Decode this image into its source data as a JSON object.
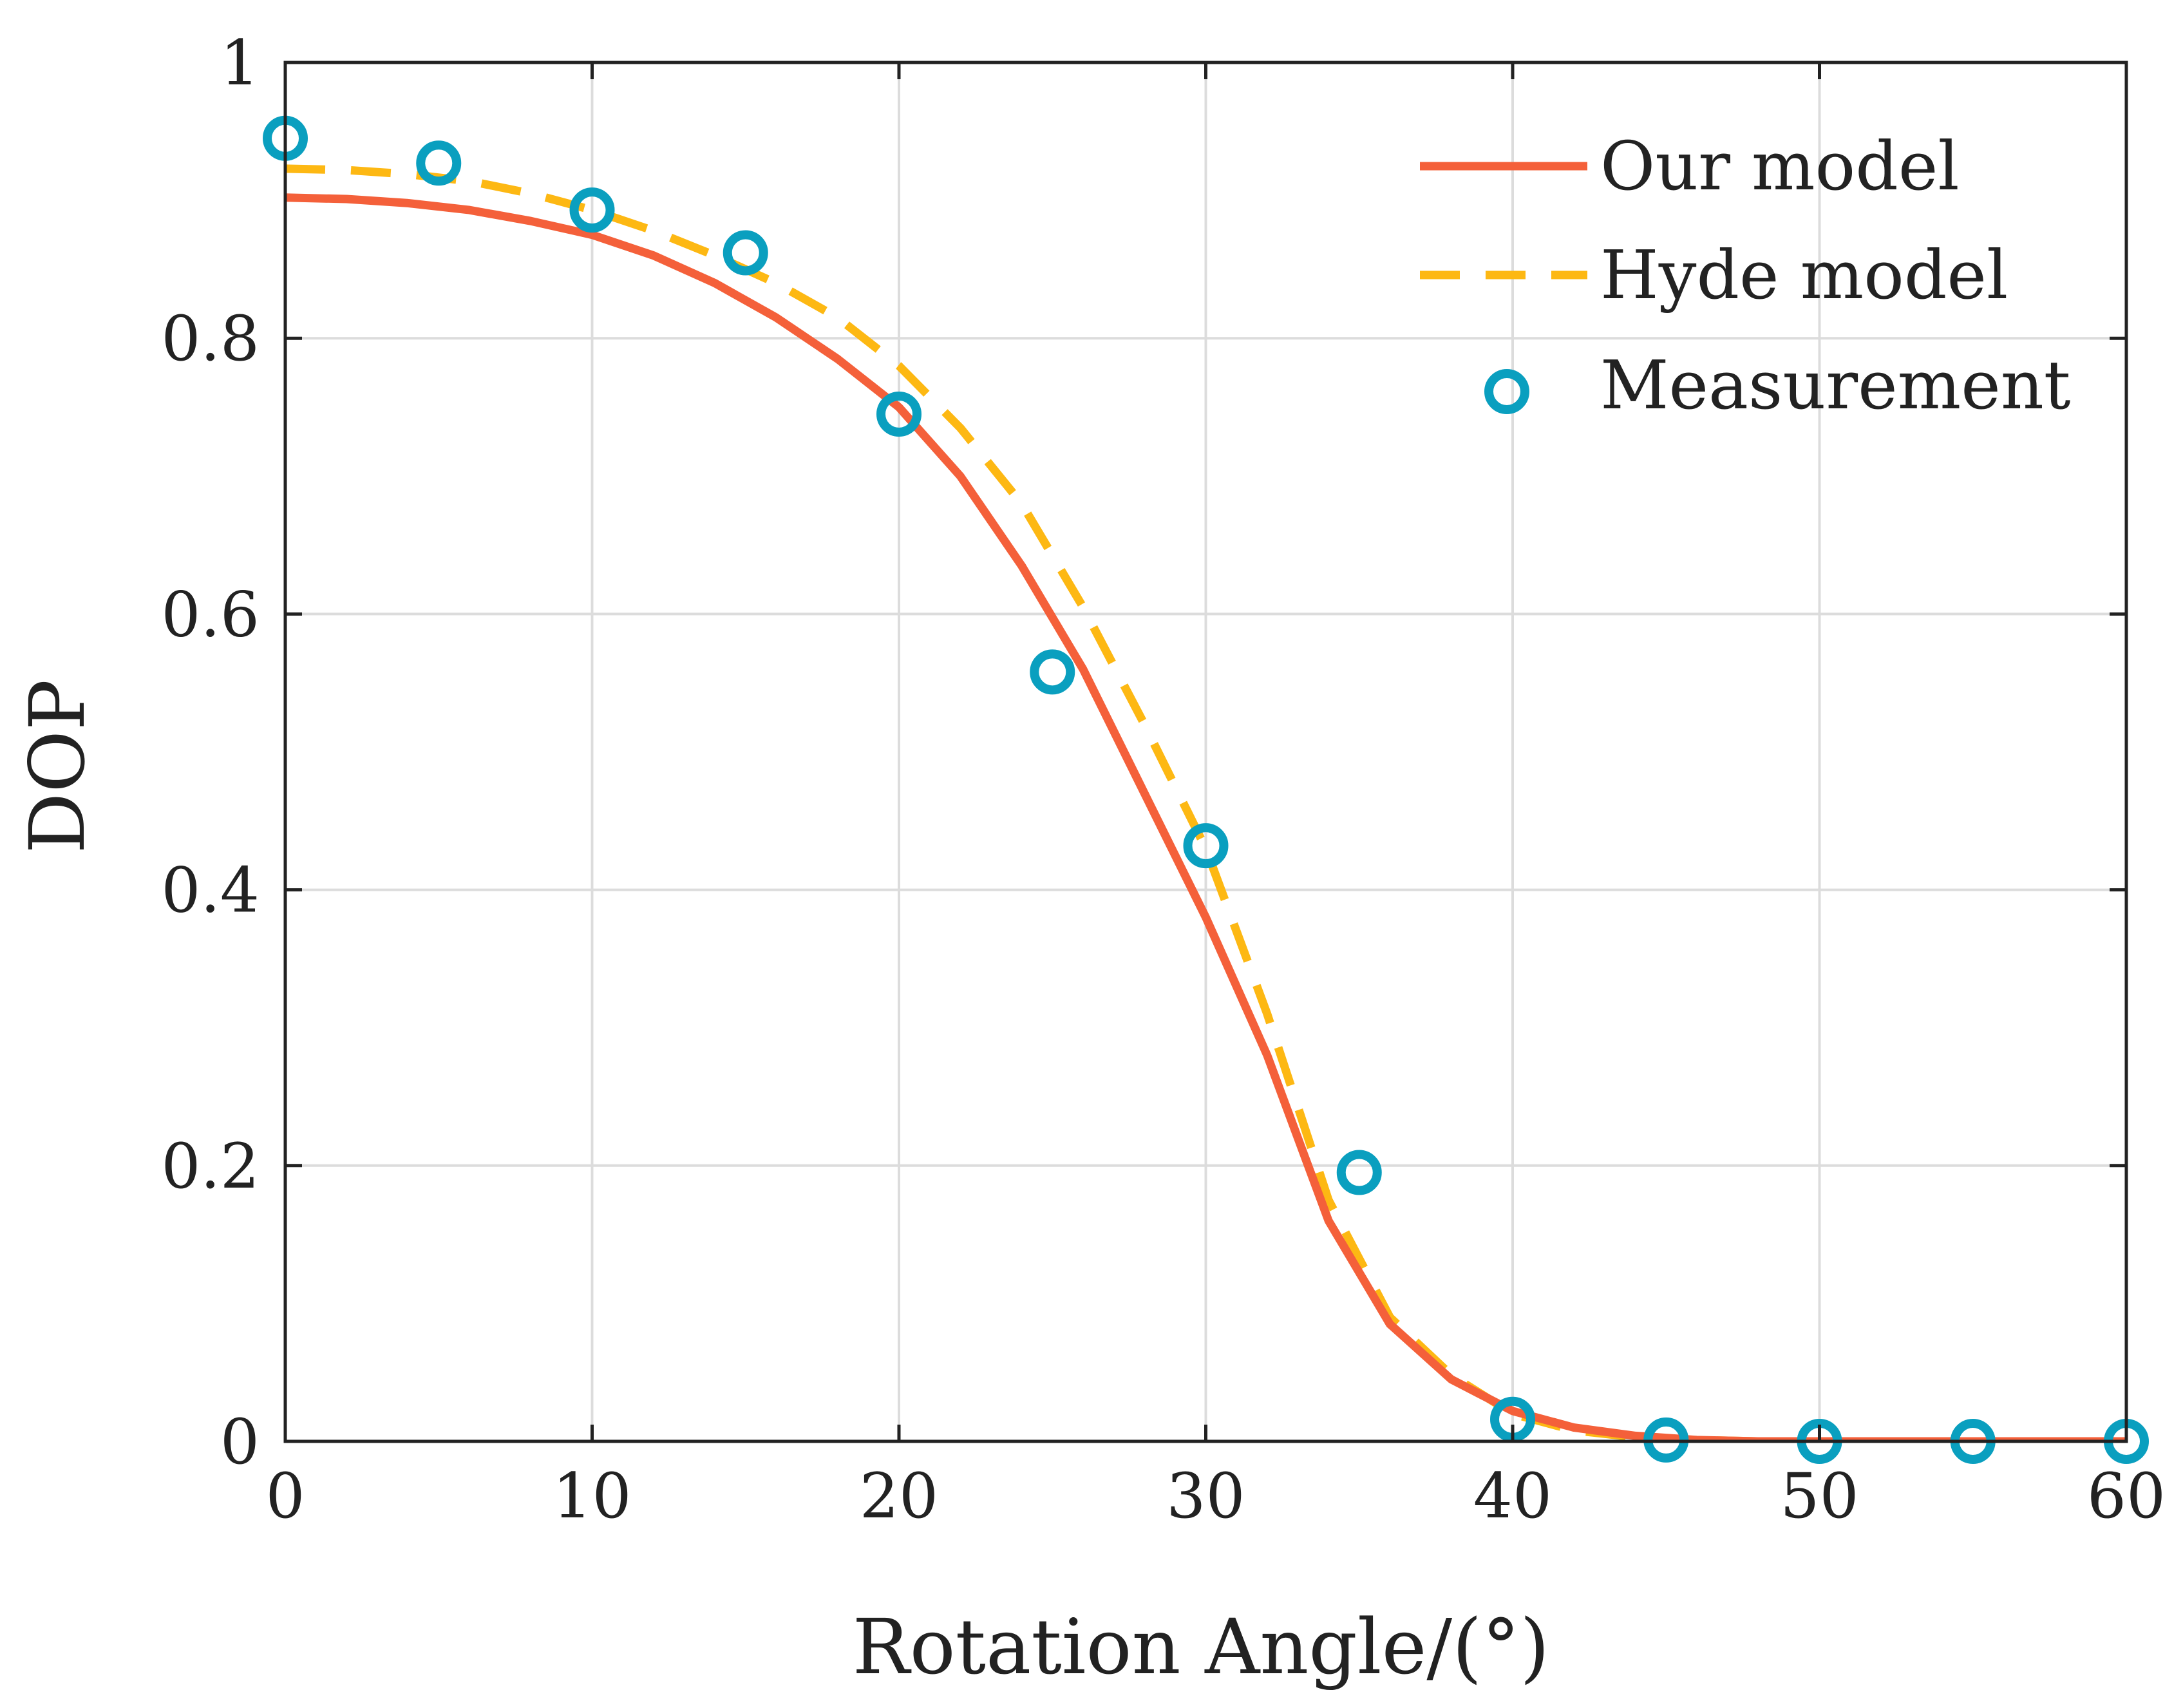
{
  "chart_data": {
    "type": "line",
    "title": "",
    "xlabel": "Rotation Angle/(°)",
    "ylabel": "DOP",
    "xlim": [
      0,
      60
    ],
    "ylim": [
      0,
      1
    ],
    "xticks": [
      0,
      10,
      20,
      30,
      40,
      50,
      60
    ],
    "xtick_labels": [
      "0",
      "10",
      "20",
      "30",
      "40",
      "50",
      "60"
    ],
    "yticks": [
      0,
      0.2,
      0.4,
      0.6,
      0.8,
      1
    ],
    "ytick_labels": [
      "0",
      "0.2",
      "0.4",
      "0.6",
      "0.8",
      "1"
    ],
    "grid": true,
    "legend_position": "top-right",
    "series": [
      {
        "name": "Our model",
        "style": "solid",
        "color": "#F4603A",
        "x": [
          0,
          2,
          4,
          6,
          8,
          10,
          12,
          14,
          16,
          18,
          20,
          22,
          24,
          26,
          28,
          30,
          32,
          34,
          36,
          38,
          40,
          42,
          44,
          46,
          48,
          50,
          52,
          54,
          56,
          58,
          60
        ],
        "y": [
          0.902,
          0.901,
          0.898,
          0.893,
          0.885,
          0.875,
          0.86,
          0.84,
          0.815,
          0.785,
          0.75,
          0.7,
          0.635,
          0.56,
          0.47,
          0.38,
          0.28,
          0.16,
          0.085,
          0.045,
          0.022,
          0.01,
          0.004,
          0.001,
          0,
          0,
          0,
          0,
          0,
          0,
          0
        ]
      },
      {
        "name": "Hyde model",
        "style": "dashed",
        "color": "#FDB813",
        "x": [
          0,
          2,
          4,
          6,
          8,
          10,
          12,
          14,
          16,
          18,
          20,
          22,
          24,
          26,
          28,
          30,
          32,
          34,
          36,
          38,
          40,
          42,
          44,
          46,
          48,
          50,
          52,
          54,
          56,
          58,
          60
        ],
        "y": [
          0.923,
          0.922,
          0.919,
          0.914,
          0.905,
          0.893,
          0.878,
          0.86,
          0.84,
          0.815,
          0.78,
          0.735,
          0.68,
          0.605,
          0.52,
          0.43,
          0.31,
          0.175,
          0.09,
          0.048,
          0.02,
          0.008,
          0.003,
          0.001,
          0,
          0,
          0,
          0,
          0,
          0,
          0
        ]
      },
      {
        "name": "Measurement",
        "style": "marker",
        "color": "#0A9FBF",
        "x": [
          0,
          5,
          10,
          15,
          20,
          25,
          30,
          35,
          40,
          45,
          50,
          55,
          60
        ],
        "y": [
          0.945,
          0.927,
          0.893,
          0.862,
          0.745,
          0.558,
          0.432,
          0.195,
          0.016,
          0.001,
          0,
          0,
          0
        ]
      }
    ]
  }
}
